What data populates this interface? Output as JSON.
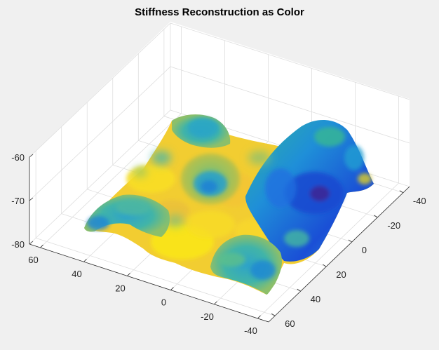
{
  "chart_data": {
    "type": "surface",
    "title": "Stiffness Reconstruction as Color",
    "xlabel": "",
    "ylabel": "",
    "zlabel": "",
    "x_ticks": [
      -40,
      -20,
      0,
      20,
      40,
      60
    ],
    "y_ticks": [
      -40,
      -20,
      0,
      20,
      40,
      60
    ],
    "z_ticks": [
      -80,
      -70,
      -60
    ],
    "xlim": [
      -45,
      65
    ],
    "ylim": [
      -45,
      65
    ],
    "zlim": [
      -80,
      -60
    ],
    "grid": true,
    "colormap": "parula",
    "color_range": [
      "#3e26a8",
      "#f9fb0e"
    ],
    "background_color": "#ffffff",
    "figure_color": "#f0f0f0",
    "surface_features": [
      {
        "name": "back-right ridge",
        "x": 30,
        "y": 40,
        "peak_z": -62,
        "color_level": 0.25
      },
      {
        "name": "left hump",
        "x": 45,
        "y": -10,
        "peak_z": -72,
        "color_level": 0.55
      },
      {
        "name": "center ring",
        "x": 15,
        "y": 15,
        "peak_z": -66,
        "color_level": 0.6
      },
      {
        "name": "back dome",
        "x": 45,
        "y": 40,
        "peak_z": -63,
        "color_level": 0.55
      },
      {
        "name": "front hump",
        "x": -10,
        "y": 10,
        "peak_z": -70,
        "color_level": 0.5
      }
    ]
  }
}
